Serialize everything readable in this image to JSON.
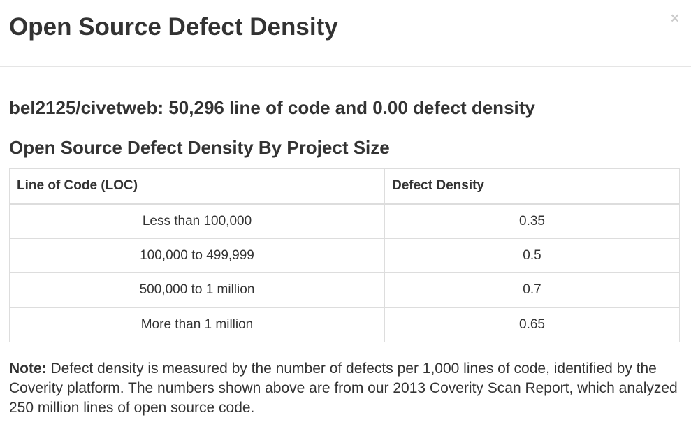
{
  "modal": {
    "title": "Open Source Defect Density",
    "close_label": "×"
  },
  "summary": {
    "text": "bel2125/civetweb: 50,296 line of code and 0.00 defect density"
  },
  "table_section": {
    "heading": "Open Source Defect Density By Project Size",
    "columns": [
      "Line of Code (LOC)",
      "Defect Density"
    ],
    "rows": [
      [
        "Less than 100,000",
        "0.35"
      ],
      [
        "100,000 to 499,999",
        "0.5"
      ],
      [
        "500,000 to 1 million",
        "0.7"
      ],
      [
        "More than 1 million",
        "0.65"
      ]
    ]
  },
  "note": {
    "label": "Note:",
    "text": " Defect density is measured by the number of defects per 1,000 lines of code, identified by the Coverity platform. The numbers shown above are from our 2013 Coverity Scan Report, which analyzed 250 million lines of open source code."
  }
}
